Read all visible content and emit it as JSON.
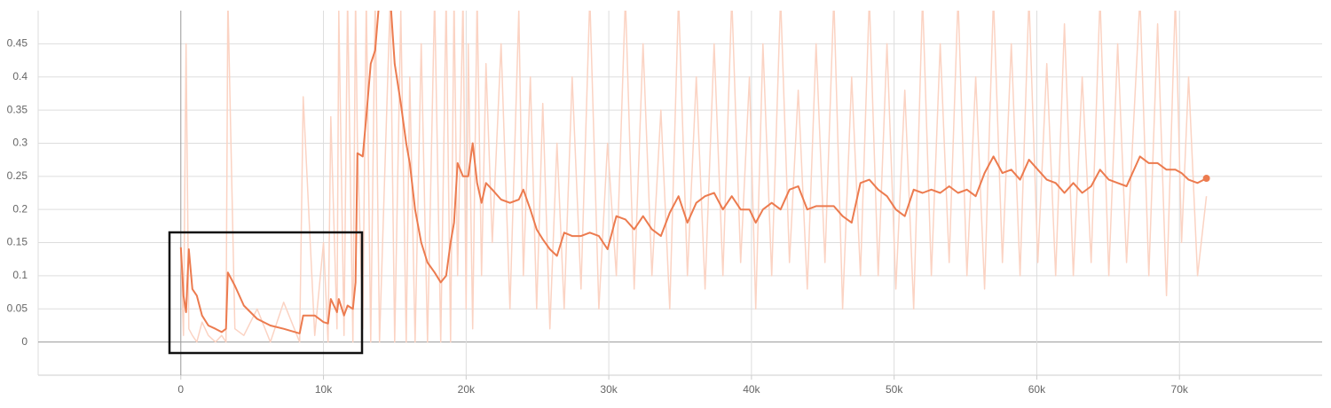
{
  "chart_data": {
    "type": "line",
    "x": [
      0,
      190,
      370,
      560,
      810,
      1120,
      1490,
      1930,
      2430,
      2860,
      3170,
      3300,
      3790,
      4420,
      5350,
      6280,
      7210,
      8330,
      8580,
      9390,
      10000,
      10320,
      10510,
      10950,
      11070,
      11440,
      11690,
      12060,
      12250,
      12380,
      12750,
      13000,
      13310,
      13620,
      13930,
      14680,
      14990,
      15420,
      15800,
      16050,
      16420,
      16850,
      17290,
      17790,
      18220,
      18600,
      18910,
      19150,
      19400,
      19780,
      20000,
      20150,
      20460,
      20770,
      21080,
      21390,
      21830,
      22450,
      23070,
      23690,
      24010,
      24500,
      24940,
      25370,
      25870,
      26370,
      26870,
      27430,
      28050,
      28670,
      29300,
      29910,
      30530,
      31160,
      31780,
      32400,
      33020,
      33650,
      34270,
      34890,
      35510,
      36130,
      36750,
      37380,
      38000,
      38620,
      39240,
      39860,
      40300,
      40800,
      41420,
      42040,
      42660,
      43280,
      43910,
      44530,
      45150,
      45770,
      46390,
      47020,
      47640,
      48260,
      48880,
      49500,
      50120,
      50750,
      51370,
      51990,
      52610,
      53230,
      53860,
      54480,
      55100,
      55720,
      56340,
      56960,
      57590,
      58210,
      58830,
      59450,
      60070,
      60700,
      61320,
      61940,
      62560,
      63180,
      63810,
      64430,
      65050,
      65670,
      66290,
      67230,
      67850,
      68470,
      69090,
      69710,
      70150,
      70640,
      71270,
      71890
    ],
    "series": [
      {
        "color": "#fbd3c3",
        "values": [
          0.14,
          0.01,
          0.45,
          0.02,
          0.01,
          0.0,
          0.03,
          0.01,
          0.0,
          0.01,
          0.0,
          0.52,
          0.02,
          0.01,
          0.05,
          0.0,
          0.06,
          0.0,
          0.37,
          0.01,
          0.15,
          0.0,
          0.34,
          0.02,
          0.5,
          0.01,
          0.52,
          0.0,
          0.52,
          0.3,
          0.02,
          0.52,
          0.0,
          0.52,
          0.0,
          0.52,
          0.0,
          0.5,
          0.0,
          0.4,
          0.0,
          0.45,
          0.0,
          0.52,
          0.0,
          0.52,
          0.0,
          0.52,
          0.1,
          0.52,
          0.05,
          0.45,
          0.02,
          0.52,
          0.1,
          0.42,
          0.15,
          0.45,
          0.05,
          0.5,
          0.1,
          0.4,
          0.05,
          0.36,
          0.02,
          0.3,
          0.05,
          0.4,
          0.08,
          0.52,
          0.05,
          0.3,
          0.1,
          0.52,
          0.08,
          0.45,
          0.1,
          0.35,
          0.05,
          0.52,
          0.1,
          0.4,
          0.08,
          0.45,
          0.1,
          0.52,
          0.12,
          0.4,
          0.05,
          0.45,
          0.1,
          0.52,
          0.12,
          0.38,
          0.08,
          0.45,
          0.12,
          0.52,
          0.05,
          0.4,
          0.1,
          0.52,
          0.1,
          0.45,
          0.08,
          0.38,
          0.05,
          0.52,
          0.1,
          0.45,
          0.12,
          0.52,
          0.1,
          0.4,
          0.08,
          0.52,
          0.12,
          0.45,
          0.1,
          0.52,
          0.12,
          0.42,
          0.1,
          0.48,
          0.1,
          0.4,
          0.12,
          0.52,
          0.1,
          0.45,
          0.12,
          0.52,
          0.1,
          0.48,
          0.07,
          0.52,
          0.15,
          0.4,
          0.1,
          0.22
        ]
      },
      {
        "color": "#ec7b4f",
        "values": [
          0.143,
          0.07,
          0.045,
          0.14,
          0.08,
          0.07,
          0.04,
          0.025,
          0.02,
          0.015,
          0.02,
          0.105,
          0.085,
          0.055,
          0.035,
          0.025,
          0.02,
          0.013,
          0.04,
          0.04,
          0.03,
          0.028,
          0.065,
          0.045,
          0.065,
          0.04,
          0.055,
          0.05,
          0.09,
          0.285,
          0.28,
          0.34,
          0.42,
          0.44,
          0.52,
          0.52,
          0.42,
          0.36,
          0.3,
          0.27,
          0.2,
          0.15,
          0.12,
          0.105,
          0.09,
          0.1,
          0.15,
          0.18,
          0.27,
          0.25,
          0.25,
          0.25,
          0.3,
          0.24,
          0.21,
          0.24,
          0.23,
          0.215,
          0.21,
          0.215,
          0.23,
          0.2,
          0.17,
          0.155,
          0.14,
          0.13,
          0.165,
          0.16,
          0.16,
          0.165,
          0.16,
          0.14,
          0.19,
          0.185,
          0.17,
          0.19,
          0.17,
          0.16,
          0.195,
          0.22,
          0.18,
          0.21,
          0.22,
          0.225,
          0.2,
          0.22,
          0.2,
          0.2,
          0.18,
          0.2,
          0.21,
          0.2,
          0.23,
          0.235,
          0.2,
          0.205,
          0.205,
          0.205,
          0.19,
          0.18,
          0.24,
          0.245,
          0.23,
          0.22,
          0.2,
          0.19,
          0.23,
          0.225,
          0.23,
          0.225,
          0.235,
          0.225,
          0.23,
          0.22,
          0.255,
          0.28,
          0.255,
          0.26,
          0.245,
          0.275,
          0.26,
          0.245,
          0.24,
          0.225,
          0.24,
          0.225,
          0.235,
          0.26,
          0.245,
          0.24,
          0.235,
          0.28,
          0.27,
          0.27,
          0.26,
          0.26,
          0.255,
          0.245,
          0.24,
          0.247
        ]
      }
    ],
    "xlim": [
      -10000,
      80000
    ],
    "xticks": [
      0,
      {
        "value": 10000,
        "label": "10k"
      },
      {
        "value": 20000,
        "label": "20k"
      },
      {
        "value": 30000,
        "label": "30k"
      },
      {
        "value": 40000,
        "label": "40k"
      },
      {
        "value": 50000,
        "label": "50k"
      },
      {
        "value": 60000,
        "label": "60k"
      },
      {
        "value": 70000,
        "label": "70k"
      }
    ],
    "ylim": [
      -0.05,
      0.5
    ],
    "yticks": [
      0,
      0.05,
      0.1,
      0.15,
      0.2,
      0.25,
      0.3,
      0.35,
      0.4,
      0.45
    ],
    "grid": true
  }
}
